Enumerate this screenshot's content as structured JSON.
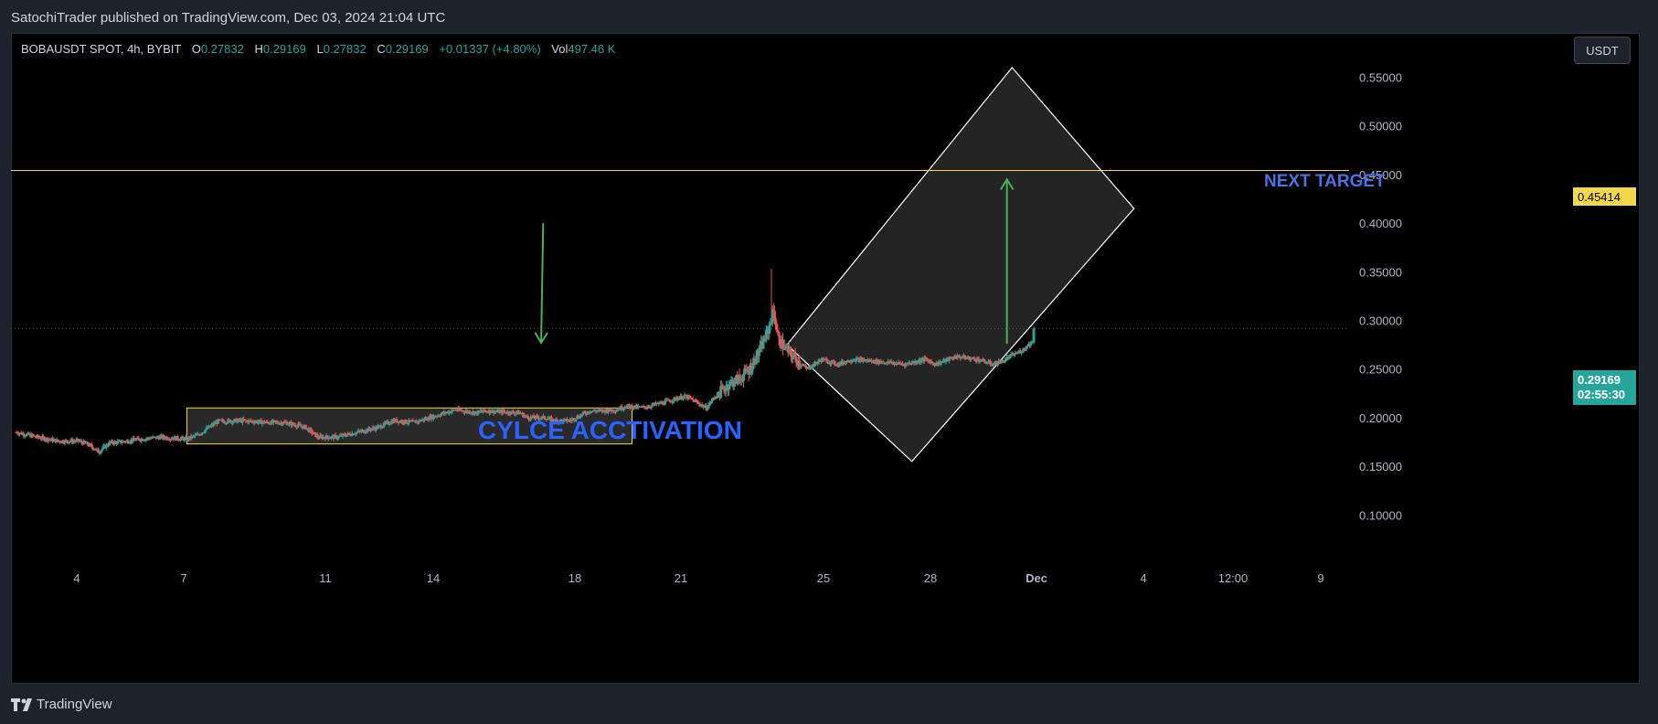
{
  "header": {
    "published": "SatochiTrader published on TradingView.com, Dec 03, 2024 21:04 UTC"
  },
  "legend": {
    "symbol": "BOBAUSDT SPOT, 4h, BYBIT",
    "o_label": "O",
    "o": "0.27832",
    "h_label": "H",
    "h": "0.29169",
    "l_label": "L",
    "l": "0.27832",
    "c_label": "C",
    "c": "0.29169",
    "change": "+0.01337 (+4.80%)",
    "vol_label": "Vol",
    "vol": "497.46 K"
  },
  "currency_button": "USDT",
  "price_tags": {
    "target": "0.45414",
    "last": "0.29169",
    "countdown": "02:55:30"
  },
  "annotations": {
    "cycle": "CYLCE ACCTIVATION",
    "next_target": "NEXT TARGET"
  },
  "footer": {
    "brand": "TradingView"
  },
  "colors": {
    "background": "#000000",
    "up": "#26a69a",
    "down": "#ef5350",
    "target_line": "#f0d84a",
    "arrow": "#4caf50",
    "annotation_text": "#2962ff"
  },
  "chart_data": {
    "type": "candlestick",
    "title": "",
    "xlabel": "",
    "ylabel": "",
    "y_axis": {
      "ticks": [
        "0.55000",
        "0.50000",
        "0.45000",
        "0.40000",
        "0.35000",
        "0.30000",
        "0.25000",
        "0.20000",
        "0.15000",
        "0.10000"
      ],
      "range": [
        0.05,
        0.6
      ]
    },
    "x_axis": {
      "ticks": [
        "4",
        "7",
        "11",
        "14",
        "18",
        "21",
        "25",
        "28",
        "Dec",
        "4",
        "12:00",
        "9"
      ]
    },
    "price_path": [
      [
        0,
        0.185
      ],
      [
        20,
        0.18
      ],
      [
        40,
        0.176
      ],
      [
        60,
        0.176
      ],
      [
        70,
        0.172
      ],
      [
        80,
        0.165
      ],
      [
        90,
        0.174
      ],
      [
        100,
        0.175
      ],
      [
        120,
        0.178
      ],
      [
        140,
        0.18
      ],
      [
        165,
        0.178
      ],
      [
        175,
        0.182
      ],
      [
        195,
        0.196
      ],
      [
        215,
        0.197
      ],
      [
        232,
        0.196
      ],
      [
        242,
        0.195
      ],
      [
        260,
        0.195
      ],
      [
        280,
        0.19
      ],
      [
        292,
        0.18
      ],
      [
        310,
        0.18
      ],
      [
        330,
        0.185
      ],
      [
        350,
        0.19
      ],
      [
        365,
        0.197
      ],
      [
        385,
        0.195
      ],
      [
        400,
        0.2
      ],
      [
        415,
        0.205
      ],
      [
        425,
        0.208
      ],
      [
        445,
        0.205
      ],
      [
        455,
        0.207
      ],
      [
        470,
        0.206
      ],
      [
        487,
        0.205
      ],
      [
        495,
        0.2
      ],
      [
        512,
        0.2
      ],
      [
        520,
        0.197
      ],
      [
        536,
        0.197
      ],
      [
        555,
        0.207
      ],
      [
        567,
        0.207
      ],
      [
        580,
        0.208
      ],
      [
        590,
        0.212
      ],
      [
        605,
        0.21
      ],
      [
        625,
        0.215
      ],
      [
        640,
        0.22
      ],
      [
        648,
        0.222
      ],
      [
        660,
        0.215
      ],
      [
        668,
        0.21
      ],
      [
        675,
        0.22
      ],
      [
        690,
        0.235
      ],
      [
        700,
        0.24
      ],
      [
        710,
        0.25
      ],
      [
        720,
        0.27
      ],
      [
        728,
        0.29
      ],
      [
        733,
        0.31
      ],
      [
        738,
        0.28
      ],
      [
        745,
        0.27
      ],
      [
        755,
        0.26
      ],
      [
        765,
        0.25
      ],
      [
        780,
        0.26
      ],
      [
        795,
        0.255
      ],
      [
        810,
        0.26
      ],
      [
        830,
        0.258
      ],
      [
        860,
        0.255
      ],
      [
        880,
        0.26
      ],
      [
        890,
        0.255
      ],
      [
        910,
        0.263
      ],
      [
        930,
        0.26
      ],
      [
        945,
        0.255
      ],
      [
        955,
        0.258
      ],
      [
        962,
        0.263
      ],
      [
        975,
        0.27
      ],
      [
        985,
        0.28
      ]
    ],
    "horizontal_lines": [
      {
        "value": 0.45414
      }
    ],
    "rectangles": [
      {
        "x": [
          165,
          596
        ],
        "y": [
          0.173,
          0.21
        ]
      }
    ],
    "rotated_box_corners": [
      [
        746,
        0.275
      ],
      [
        964,
        0.56
      ],
      [
        1082,
        0.415
      ],
      [
        867,
        0.155
      ]
    ],
    "arrows": [
      {
        "from": [
          510,
          0.4
        ],
        "to": [
          508,
          0.277
        ]
      },
      {
        "from": [
          959,
          0.276
        ],
        "to": [
          959,
          0.445
        ]
      }
    ],
    "last_price": 0.29169
  }
}
